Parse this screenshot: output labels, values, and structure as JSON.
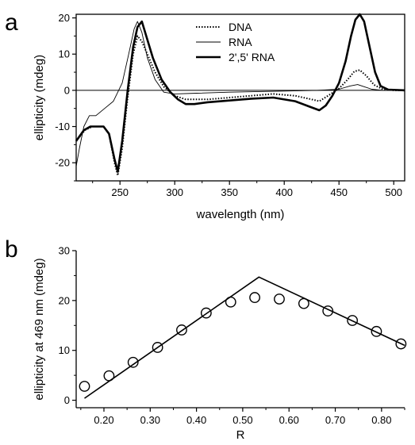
{
  "panels": {
    "a": "a",
    "b": "b"
  },
  "chart_data": [
    {
      "type": "line",
      "panel": "a",
      "xlabel": "wavelength (nm)",
      "ylabel": "ellipticity (mdeg)",
      "xlim": [
        210,
        510
      ],
      "ylim": [
        -25,
        21
      ],
      "xticks": [
        250,
        300,
        350,
        400,
        450,
        500
      ],
      "yticks": [
        -20,
        -10,
        0,
        10,
        20
      ],
      "legend_position": "top-center",
      "series": [
        {
          "name": "DNA",
          "style": "dotted",
          "points": [
            [
              210,
              -14
            ],
            [
              218,
              -11
            ],
            [
              225,
              -10
            ],
            [
              235,
              -10
            ],
            [
              240,
              -12
            ],
            [
              245,
              -20
            ],
            [
              248,
              -23.5
            ],
            [
              252,
              -16
            ],
            [
              257,
              -2
            ],
            [
              262,
              10
            ],
            [
              266,
              15
            ],
            [
              270,
              13.5
            ],
            [
              275,
              10
            ],
            [
              282,
              5
            ],
            [
              290,
              1
            ],
            [
              300,
              -1.5
            ],
            [
              310,
              -2.5
            ],
            [
              330,
              -2.5
            ],
            [
              350,
              -2
            ],
            [
              370,
              -1.5
            ],
            [
              390,
              -1
            ],
            [
              410,
              -1.5
            ],
            [
              425,
              -2.5
            ],
            [
              432,
              -3
            ],
            [
              440,
              -1.5
            ],
            [
              450,
              0.5
            ],
            [
              458,
              3
            ],
            [
              464,
              5.2
            ],
            [
              469,
              5.6
            ],
            [
              475,
              4
            ],
            [
              482,
              1.5
            ],
            [
              490,
              0.3
            ],
            [
              500,
              0
            ],
            [
              510,
              0
            ]
          ]
        },
        {
          "name": "RNA",
          "style": "thin",
          "points": [
            [
              210,
              -21
            ],
            [
              213,
              -16
            ],
            [
              217,
              -10
            ],
            [
              222,
              -7
            ],
            [
              228,
              -7
            ],
            [
              236,
              -5
            ],
            [
              244,
              -3
            ],
            [
              252,
              2
            ],
            [
              258,
              10
            ],
            [
              263,
              17
            ],
            [
              266,
              19
            ],
            [
              270,
              16
            ],
            [
              275,
              9
            ],
            [
              282,
              3
            ],
            [
              290,
              -0.5
            ],
            [
              300,
              -1
            ],
            [
              320,
              -0.8
            ],
            [
              350,
              -0.5
            ],
            [
              400,
              -0.2
            ],
            [
              430,
              0
            ],
            [
              450,
              0.3
            ],
            [
              460,
              1.2
            ],
            [
              467,
              1.6
            ],
            [
              473,
              1
            ],
            [
              480,
              0.3
            ],
            [
              490,
              0
            ],
            [
              510,
              0
            ]
          ]
        },
        {
          "name": "2',5' RNA",
          "style": "thick",
          "points": [
            [
              210,
              -14
            ],
            [
              217,
              -11
            ],
            [
              223,
              -10
            ],
            [
              235,
              -10
            ],
            [
              240,
              -12
            ],
            [
              245,
              -19
            ],
            [
              248,
              -22.5
            ],
            [
              252,
              -14
            ],
            [
              257,
              0
            ],
            [
              262,
              12
            ],
            [
              266,
              17.5
            ],
            [
              270,
              19
            ],
            [
              274,
              15
            ],
            [
              280,
              9
            ],
            [
              288,
              3
            ],
            [
              296,
              -0.5
            ],
            [
              303,
              -2.5
            ],
            [
              310,
              -3.8
            ],
            [
              318,
              -3.8
            ],
            [
              330,
              -3.3
            ],
            [
              350,
              -2.8
            ],
            [
              370,
              -2.3
            ],
            [
              390,
              -2
            ],
            [
              410,
              -3
            ],
            [
              423,
              -4.5
            ],
            [
              432,
              -5.5
            ],
            [
              438,
              -4.2
            ],
            [
              444,
              -1.5
            ],
            [
              450,
              2
            ],
            [
              456,
              8
            ],
            [
              461,
              15
            ],
            [
              465,
              19.5
            ],
            [
              469,
              21
            ],
            [
              473,
              19
            ],
            [
              478,
              12
            ],
            [
              483,
              5
            ],
            [
              488,
              1.2
            ],
            [
              495,
              0.2
            ],
            [
              510,
              0
            ]
          ]
        }
      ]
    },
    {
      "type": "scatter",
      "panel": "b",
      "xlabel": "R",
      "ylabel": "ellipticity at 469 nm (mdeg)",
      "xlim": [
        0.14,
        0.85
      ],
      "ylim": [
        -1.5,
        30
      ],
      "xticks": [
        0.2,
        0.3,
        0.4,
        0.5,
        0.6,
        0.7,
        0.8
      ],
      "xtick_labels": [
        "0.20",
        "0.30",
        "0.40",
        "0.50",
        "0.60",
        "0.70",
        "0.80"
      ],
      "yticks": [
        0,
        10,
        20,
        30
      ],
      "points": [
        [
          0.158,
          2.8
        ],
        [
          0.211,
          4.9
        ],
        [
          0.263,
          7.6
        ],
        [
          0.316,
          10.6
        ],
        [
          0.368,
          14.1
        ],
        [
          0.421,
          17.5
        ],
        [
          0.474,
          19.7
        ],
        [
          0.526,
          20.6
        ],
        [
          0.579,
          20.3
        ],
        [
          0.632,
          19.4
        ],
        [
          0.684,
          17.9
        ],
        [
          0.737,
          16.0
        ],
        [
          0.789,
          13.8
        ],
        [
          0.842,
          11.3
        ]
      ],
      "fit_line": [
        [
          0.158,
          0.4
        ],
        [
          0.535,
          24.7
        ],
        [
          0.85,
          11.0
        ]
      ]
    }
  ]
}
